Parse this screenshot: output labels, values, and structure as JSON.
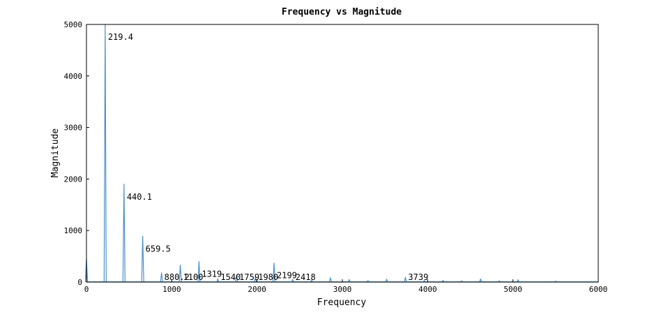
{
  "chart_data": {
    "type": "line",
    "title": "Frequency vs Magnitude",
    "xlabel": "Frequency",
    "ylabel": "Magnitude",
    "xlim": [
      0,
      6000
    ],
    "ylim": [
      0,
      5000
    ],
    "xticks": [
      0,
      1000,
      2000,
      3000,
      4000,
      5000,
      6000
    ],
    "yticks": [
      0,
      1000,
      2000,
      3000,
      4000,
      5000
    ],
    "grid": false,
    "line_color": "#4a90c8",
    "series": [
      {
        "x": [
          0,
          219.4,
          440.1,
          659.5,
          880.2,
          1100,
          1319,
          1540,
          1759,
          1980,
          2199,
          2418,
          2640,
          2860,
          3080,
          3300,
          3520,
          3739,
          3960,
          4180,
          4400,
          4620,
          4840,
          5060,
          5500
        ],
        "values": [
          450,
          5000,
          1900,
          890,
          180,
          330,
          400,
          60,
          130,
          90,
          370,
          50,
          40,
          85,
          50,
          30,
          55,
          95,
          30,
          35,
          25,
          60,
          25,
          45,
          20
        ]
      }
    ],
    "annotations": [
      {
        "x": 219.4,
        "y": 5000,
        "text": "219.4"
      },
      {
        "x": 440.1,
        "y": 1900,
        "text": "440.1"
      },
      {
        "x": 659.5,
        "y": 890,
        "text": "659.5"
      },
      {
        "x": 880.2,
        "y": 180,
        "text": "880.2"
      },
      {
        "x": 1100,
        "y": 330,
        "text": "1100"
      },
      {
        "x": 1319,
        "y": 400,
        "text": "1319"
      },
      {
        "x": 1540,
        "y": 60,
        "text": "1540"
      },
      {
        "x": 1759,
        "y": 130,
        "text": "1759"
      },
      {
        "x": 1980,
        "y": 90,
        "text": "1980"
      },
      {
        "x": 2199,
        "y": 370,
        "text": "2199"
      },
      {
        "x": 2418,
        "y": 50,
        "text": "2418"
      },
      {
        "x": 3739,
        "y": 95,
        "text": "3739"
      }
    ]
  }
}
